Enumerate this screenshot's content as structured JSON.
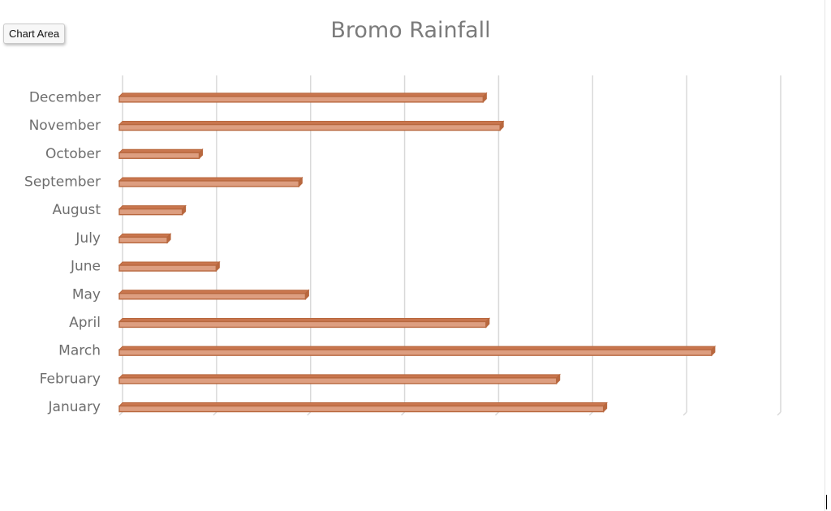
{
  "tooltip": {
    "label": "Chart Area"
  },
  "chart_data": {
    "type": "bar",
    "orientation": "horizontal",
    "title": "Bromo Rainfall",
    "xlabel": "",
    "ylabel": "",
    "categories": [
      "January",
      "February",
      "March",
      "April",
      "May",
      "June",
      "July",
      "August",
      "September",
      "October",
      "November",
      "December"
    ],
    "values": [
      51.5,
      46.5,
      63,
      39,
      19.8,
      10.3,
      5.1,
      6.7,
      19.1,
      8.5,
      40.5,
      38.7
    ],
    "xlim": [
      0,
      70
    ],
    "x_major_step": 10,
    "grid": true,
    "tick_labels_shown": false,
    "legend": "none",
    "colors": {
      "bar_fill": "#dd9e80",
      "bar_edge": "#b8683f",
      "bar_top": "#c9764e",
      "grid": "#d9d9d9",
      "title": "#7b7b7b",
      "label": "#6e6e6e"
    }
  }
}
